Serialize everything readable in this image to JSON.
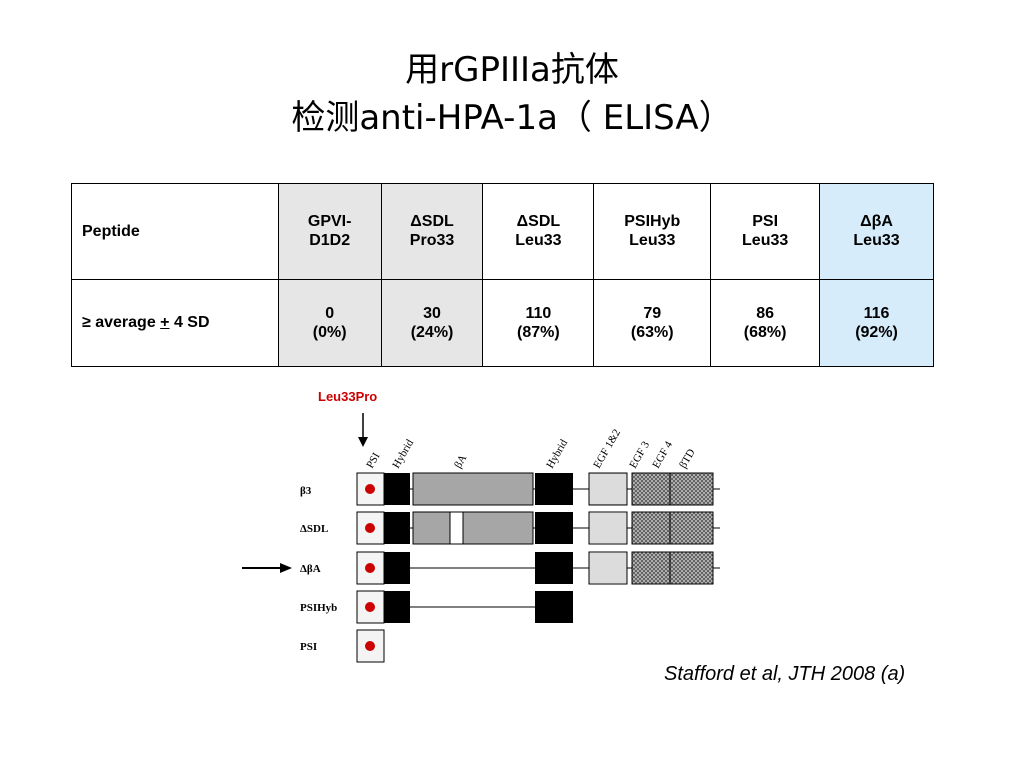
{
  "title": {
    "line1": "用rGPIIIa抗体",
    "line2": "检测anti-HPA-1a（ ELISA）"
  },
  "table": {
    "row_header_1": "Peptide",
    "row_header_2_prefix": "≥ average ",
    "row_header_2_pm": "+",
    "row_header_2_suffix": " 4 SD",
    "columns": [
      {
        "line1": "GPVI-",
        "line2": "D1D2",
        "count": "0",
        "pct": "(0%)",
        "shade": "grey"
      },
      {
        "line1": "ΔSDL",
        "line2": "Pro33",
        "count": "30",
        "pct": "(24%)",
        "shade": "grey"
      },
      {
        "line1": "ΔSDL",
        "line2": "Leu33",
        "count": "110",
        "pct": "(87%)",
        "shade": "none"
      },
      {
        "line1": "PSIHyb",
        "line2": "Leu33",
        "count": "79",
        "pct": "(63%)",
        "shade": "none"
      },
      {
        "line1": "PSI",
        "line2": "Leu33",
        "count": "86",
        "pct": "(68%)",
        "shade": "none"
      },
      {
        "line1": "ΔβA",
        "line2": "Leu33",
        "count": "116",
        "pct": "(92%)",
        "shade": "blue"
      }
    ]
  },
  "diagram": {
    "mutation_label": "Leu33Pro",
    "domain_labels": [
      "PSI",
      "Hybrid",
      "βA",
      "Hybrid",
      "EGF 1&2",
      "EGF 3",
      "EGF 4",
      "βTD"
    ],
    "rows": [
      "β3",
      "ΔSDL",
      "ΔβA",
      "PSIHyb",
      "PSI"
    ],
    "highlighted_row": "ΔβA"
  },
  "citation": "Stafford et al, JTH 2008 (a)",
  "colors": {
    "mutation_red": "#cc0000",
    "grey_cell": "#e6e6e6",
    "blue_cell": "#d7ecfa",
    "domain_black": "#000000",
    "betaA_grey": "#a6a6a6"
  }
}
